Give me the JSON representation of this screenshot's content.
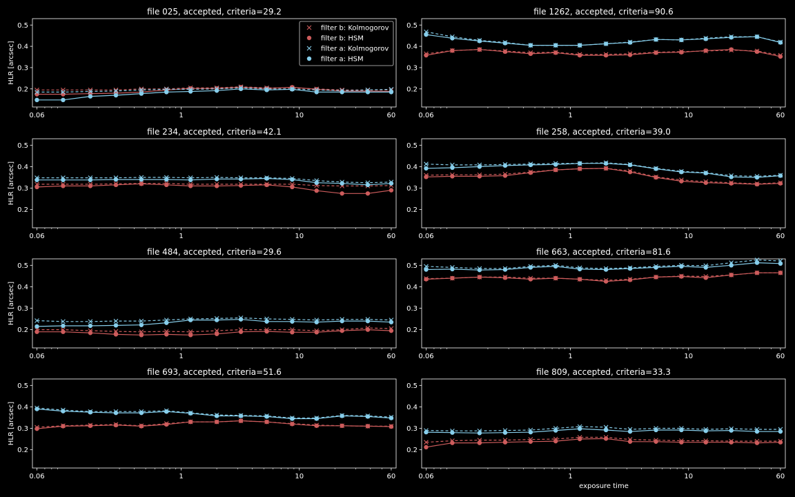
{
  "colors": {
    "background": "#000000",
    "foreground": "#ffffff",
    "filter_b": "#cd5c5c",
    "filter_a": "#87ceeb"
  },
  "figure": {
    "xlabel": "exposure time"
  },
  "legend": {
    "placement": "top-right",
    "entries": [
      {
        "label": "filter b: Kolmogorov",
        "marker": "x",
        "color": "#cd5c5c"
      },
      {
        "label": "filter b: HSM",
        "marker": "o",
        "color": "#cd5c5c"
      },
      {
        "label": "filter a: Kolmogorov",
        "marker": "x",
        "color": "#87ceeb"
      },
      {
        "label": "filter a: HSM",
        "marker": "o",
        "color": "#87ceeb"
      }
    ]
  },
  "chart_data": [
    {
      "type": "line",
      "title": "file 025, accepted, criteria=29.2",
      "xlabel": "",
      "ylabel": "HLR [arcsec]",
      "xscale": "log",
      "xticks": [
        "0.06",
        "1",
        "10",
        "60"
      ],
      "yticks": [
        "0.2",
        "0.3",
        "0.4",
        "0.5"
      ],
      "xlim": [
        0.055,
        66
      ],
      "ylim": [
        0.115,
        0.53
      ],
      "grid": false,
      "x": [
        0.06,
        0.1,
        0.17,
        0.28,
        0.46,
        0.75,
        1.2,
        2.0,
        3.2,
        5.3,
        8.7,
        14,
        23,
        38,
        60
      ],
      "series": [
        {
          "name": "filter b: Kolmogorov",
          "values": [
            0.195,
            0.195,
            0.195,
            0.195,
            0.2,
            0.2,
            0.205,
            0.205,
            0.21,
            0.205,
            0.205,
            0.2,
            0.195,
            0.195,
            0.195
          ]
        },
        {
          "name": "filter b: HSM",
          "values": [
            0.175,
            0.175,
            0.178,
            0.18,
            0.185,
            0.195,
            0.202,
            0.202,
            0.208,
            0.202,
            0.208,
            0.198,
            0.19,
            0.19,
            0.188
          ]
        },
        {
          "name": "filter a: Kolmogorov",
          "values": [
            0.185,
            0.185,
            0.188,
            0.19,
            0.195,
            0.198,
            0.198,
            0.2,
            0.205,
            0.2,
            0.2,
            0.195,
            0.192,
            0.195,
            0.198
          ]
        },
        {
          "name": "filter a: HSM",
          "values": [
            0.148,
            0.148,
            0.165,
            0.17,
            0.178,
            0.185,
            0.188,
            0.192,
            0.2,
            0.195,
            0.198,
            0.185,
            0.185,
            0.185,
            0.185
          ]
        }
      ]
    },
    {
      "type": "line",
      "title": "file 1262, accepted, criteria=90.6",
      "xlabel": "",
      "ylabel": "",
      "xscale": "log",
      "xticks": [
        "0.06",
        "1",
        "10",
        "60"
      ],
      "yticks": [
        "0.2",
        "0.3",
        "0.4",
        "0.5"
      ],
      "xlim": [
        0.055,
        66
      ],
      "ylim": [
        0.115,
        0.53
      ],
      "grid": false,
      "x": [
        0.06,
        0.1,
        0.17,
        0.28,
        0.46,
        0.75,
        1.2,
        2.0,
        3.2,
        5.3,
        8.7,
        14,
        23,
        38,
        60
      ],
      "series": [
        {
          "name": "filter b: Kolmogorov",
          "values": [
            0.365,
            0.38,
            0.385,
            0.378,
            0.37,
            0.372,
            0.362,
            0.362,
            0.365,
            0.372,
            0.375,
            0.378,
            0.382,
            0.378,
            0.358
          ]
        },
        {
          "name": "filter b: HSM",
          "values": [
            0.358,
            0.38,
            0.385,
            0.375,
            0.365,
            0.37,
            0.358,
            0.358,
            0.36,
            0.37,
            0.372,
            0.38,
            0.385,
            0.375,
            0.352
          ]
        },
        {
          "name": "filter a: Kolmogorov",
          "values": [
            0.468,
            0.445,
            0.428,
            0.418,
            0.405,
            0.405,
            0.405,
            0.412,
            0.42,
            0.432,
            0.43,
            0.438,
            0.445,
            0.445,
            0.42
          ]
        },
        {
          "name": "filter a: HSM",
          "values": [
            0.455,
            0.438,
            0.425,
            0.415,
            0.405,
            0.405,
            0.405,
            0.412,
            0.418,
            0.432,
            0.43,
            0.435,
            0.442,
            0.445,
            0.418
          ]
        }
      ]
    },
    {
      "type": "line",
      "title": "file 234, accepted, criteria=42.1",
      "xlabel": "",
      "ylabel": "HLR [arcsec]",
      "xscale": "log",
      "xticks": [
        "0.06",
        "1",
        "10",
        "60"
      ],
      "yticks": [
        "0.2",
        "0.3",
        "0.4",
        "0.5"
      ],
      "xlim": [
        0.055,
        66
      ],
      "ylim": [
        0.115,
        0.53
      ],
      "grid": false,
      "x": [
        0.06,
        0.1,
        0.17,
        0.28,
        0.46,
        0.75,
        1.2,
        2.0,
        3.2,
        5.3,
        8.7,
        14,
        23,
        38,
        60
      ],
      "series": [
        {
          "name": "filter b: Kolmogorov",
          "values": [
            0.318,
            0.318,
            0.318,
            0.32,
            0.322,
            0.322,
            0.318,
            0.318,
            0.318,
            0.318,
            0.318,
            0.312,
            0.31,
            0.31,
            0.312
          ]
        },
        {
          "name": "filter b: HSM",
          "values": [
            0.305,
            0.31,
            0.31,
            0.315,
            0.32,
            0.315,
            0.31,
            0.31,
            0.312,
            0.315,
            0.305,
            0.288,
            0.275,
            0.275,
            0.29
          ]
        },
        {
          "name": "filter a: Kolmogorov",
          "values": [
            0.348,
            0.348,
            0.348,
            0.348,
            0.35,
            0.35,
            0.348,
            0.35,
            0.348,
            0.348,
            0.345,
            0.335,
            0.328,
            0.325,
            0.328
          ]
        },
        {
          "name": "filter a: HSM",
          "values": [
            0.338,
            0.338,
            0.338,
            0.34,
            0.34,
            0.34,
            0.338,
            0.342,
            0.342,
            0.345,
            0.34,
            0.325,
            0.322,
            0.315,
            0.322
          ]
        }
      ]
    },
    {
      "type": "line",
      "title": "file 258, accepted, criteria=39.0",
      "xlabel": "",
      "ylabel": "",
      "xscale": "log",
      "xticks": [
        "0.06",
        "1",
        "10",
        "60"
      ],
      "yticks": [
        "0.2",
        "0.3",
        "0.4",
        "0.5"
      ],
      "xlim": [
        0.055,
        66
      ],
      "ylim": [
        0.115,
        0.53
      ],
      "grid": false,
      "x": [
        0.06,
        0.1,
        0.17,
        0.28,
        0.46,
        0.75,
        1.2,
        2.0,
        3.2,
        5.3,
        8.7,
        14,
        23,
        38,
        60
      ],
      "series": [
        {
          "name": "filter b: Kolmogorov",
          "values": [
            0.36,
            0.362,
            0.362,
            0.365,
            0.375,
            0.385,
            0.39,
            0.392,
            0.38,
            0.352,
            0.338,
            0.33,
            0.325,
            0.32,
            0.325
          ]
        },
        {
          "name": "filter b: HSM",
          "values": [
            0.352,
            0.355,
            0.355,
            0.358,
            0.372,
            0.385,
            0.39,
            0.392,
            0.375,
            0.35,
            0.332,
            0.325,
            0.322,
            0.318,
            0.322
          ]
        },
        {
          "name": "filter a: Kolmogorov",
          "values": [
            0.412,
            0.408,
            0.408,
            0.41,
            0.412,
            0.415,
            0.415,
            0.418,
            0.41,
            0.392,
            0.378,
            0.372,
            0.358,
            0.355,
            0.36
          ]
        },
        {
          "name": "filter a: HSM",
          "values": [
            0.392,
            0.395,
            0.4,
            0.405,
            0.408,
            0.41,
            0.415,
            0.415,
            0.408,
            0.39,
            0.375,
            0.37,
            0.352,
            0.35,
            0.358
          ]
        }
      ]
    },
    {
      "type": "line",
      "title": "file 484, accepted, criteria=29.6",
      "xlabel": "",
      "ylabel": "HLR [arcsec]",
      "xscale": "log",
      "xticks": [
        "0.06",
        "1",
        "10",
        "60"
      ],
      "yticks": [
        "0.2",
        "0.3",
        "0.4",
        "0.5"
      ],
      "xlim": [
        0.055,
        66
      ],
      "ylim": [
        0.115,
        0.53
      ],
      "grid": false,
      "x": [
        0.06,
        0.1,
        0.17,
        0.28,
        0.46,
        0.75,
        1.2,
        2.0,
        3.2,
        5.3,
        8.7,
        14,
        23,
        38,
        60
      ],
      "series": [
        {
          "name": "filter b: Kolmogorov",
          "values": [
            0.2,
            0.2,
            0.195,
            0.192,
            0.19,
            0.192,
            0.19,
            0.195,
            0.2,
            0.2,
            0.2,
            0.195,
            0.2,
            0.208,
            0.205
          ]
        },
        {
          "name": "filter b: HSM",
          "values": [
            0.19,
            0.19,
            0.185,
            0.178,
            0.175,
            0.178,
            0.175,
            0.18,
            0.19,
            0.192,
            0.188,
            0.188,
            0.195,
            0.2,
            0.195
          ]
        },
        {
          "name": "filter a: Kolmogorov",
          "values": [
            0.242,
            0.238,
            0.238,
            0.24,
            0.24,
            0.245,
            0.25,
            0.252,
            0.255,
            0.25,
            0.248,
            0.245,
            0.248,
            0.248,
            0.245
          ]
        },
        {
          "name": "filter a: HSM",
          "values": [
            0.215,
            0.218,
            0.218,
            0.22,
            0.222,
            0.232,
            0.245,
            0.245,
            0.248,
            0.238,
            0.238,
            0.235,
            0.24,
            0.24,
            0.235
          ]
        }
      ]
    },
    {
      "type": "line",
      "title": "file 663, accepted, criteria=81.6",
      "xlabel": "",
      "ylabel": "",
      "xscale": "log",
      "xticks": [
        "0.06",
        "1",
        "10",
        "60"
      ],
      "yticks": [
        "0.2",
        "0.3",
        "0.4",
        "0.5"
      ],
      "xlim": [
        0.055,
        66
      ],
      "ylim": [
        0.115,
        0.53
      ],
      "grid": false,
      "x": [
        0.06,
        0.1,
        0.17,
        0.28,
        0.46,
        0.75,
        1.2,
        2.0,
        3.2,
        5.3,
        8.7,
        14,
        23,
        38,
        60
      ],
      "series": [
        {
          "name": "filter b: Kolmogorov",
          "values": [
            0.438,
            0.44,
            0.445,
            0.445,
            0.44,
            0.44,
            0.435,
            0.43,
            0.435,
            0.445,
            0.45,
            0.448,
            0.455,
            0.465,
            0.465
          ]
        },
        {
          "name": "filter b: HSM",
          "values": [
            0.435,
            0.44,
            0.445,
            0.442,
            0.435,
            0.44,
            0.435,
            0.425,
            0.432,
            0.445,
            0.448,
            0.442,
            0.455,
            0.465,
            0.465
          ]
        },
        {
          "name": "filter a: Kolmogorov",
          "values": [
            0.495,
            0.49,
            0.485,
            0.485,
            0.495,
            0.5,
            0.488,
            0.485,
            0.488,
            0.495,
            0.5,
            0.498,
            0.512,
            0.525,
            0.52
          ]
        },
        {
          "name": "filter a: HSM",
          "values": [
            0.48,
            0.482,
            0.478,
            0.48,
            0.49,
            0.495,
            0.482,
            0.48,
            0.485,
            0.49,
            0.495,
            0.49,
            0.5,
            0.512,
            0.508
          ]
        }
      ]
    },
    {
      "type": "line",
      "title": "file 693, accepted, criteria=51.6",
      "xlabel": "",
      "ylabel": "HLR [arcsec]",
      "xscale": "log",
      "xticks": [
        "0.06",
        "1",
        "10",
        "60"
      ],
      "yticks": [
        "0.2",
        "0.3",
        "0.4",
        "0.5"
      ],
      "xlim": [
        0.055,
        66
      ],
      "ylim": [
        0.115,
        0.53
      ],
      "grid": false,
      "x": [
        0.06,
        0.1,
        0.17,
        0.28,
        0.46,
        0.75,
        1.2,
        2.0,
        3.2,
        5.3,
        8.7,
        14,
        23,
        38,
        60
      ],
      "series": [
        {
          "name": "filter b: Kolmogorov",
          "values": [
            0.305,
            0.312,
            0.315,
            0.318,
            0.312,
            0.322,
            0.33,
            0.33,
            0.335,
            0.33,
            0.322,
            0.315,
            0.312,
            0.31,
            0.31
          ]
        },
        {
          "name": "filter b: HSM",
          "values": [
            0.298,
            0.31,
            0.312,
            0.315,
            0.31,
            0.318,
            0.33,
            0.33,
            0.335,
            0.33,
            0.32,
            0.312,
            0.312,
            0.31,
            0.308
          ]
        },
        {
          "name": "filter a: Kolmogorov",
          "values": [
            0.395,
            0.385,
            0.378,
            0.378,
            0.378,
            0.382,
            0.372,
            0.362,
            0.36,
            0.358,
            0.348,
            0.348,
            0.36,
            0.358,
            0.352
          ]
        },
        {
          "name": "filter a: HSM",
          "values": [
            0.39,
            0.38,
            0.375,
            0.372,
            0.372,
            0.378,
            0.37,
            0.358,
            0.358,
            0.355,
            0.345,
            0.345,
            0.358,
            0.355,
            0.348
          ]
        }
      ]
    },
    {
      "type": "line",
      "title": "file 809, accepted, criteria=33.3",
      "xlabel": "exposure time",
      "ylabel": "",
      "xscale": "log",
      "xticks": [
        "0.06",
        "1",
        "10",
        "60"
      ],
      "yticks": [
        "0.2",
        "0.3",
        "0.4",
        "0.5"
      ],
      "xlim": [
        0.055,
        66
      ],
      "ylim": [
        0.115,
        0.53
      ],
      "grid": false,
      "x": [
        0.06,
        0.1,
        0.17,
        0.28,
        0.46,
        0.75,
        1.2,
        2.0,
        3.2,
        5.3,
        8.7,
        14,
        23,
        38,
        60
      ],
      "series": [
        {
          "name": "filter b: Kolmogorov",
          "values": [
            0.235,
            0.242,
            0.245,
            0.245,
            0.248,
            0.25,
            0.258,
            0.258,
            0.248,
            0.245,
            0.242,
            0.242,
            0.24,
            0.24,
            0.24
          ]
        },
        {
          "name": "filter b: HSM",
          "values": [
            0.212,
            0.232,
            0.232,
            0.235,
            0.238,
            0.24,
            0.25,
            0.252,
            0.238,
            0.238,
            0.235,
            0.235,
            0.235,
            0.232,
            0.235
          ]
        },
        {
          "name": "filter a: Kolmogorov",
          "values": [
            0.29,
            0.288,
            0.288,
            0.29,
            0.292,
            0.3,
            0.308,
            0.305,
            0.295,
            0.3,
            0.3,
            0.295,
            0.298,
            0.295,
            0.295
          ]
        },
        {
          "name": "filter a: HSM",
          "values": [
            0.282,
            0.28,
            0.278,
            0.28,
            0.282,
            0.29,
            0.298,
            0.292,
            0.285,
            0.292,
            0.292,
            0.288,
            0.29,
            0.285,
            0.285
          ]
        }
      ]
    }
  ]
}
